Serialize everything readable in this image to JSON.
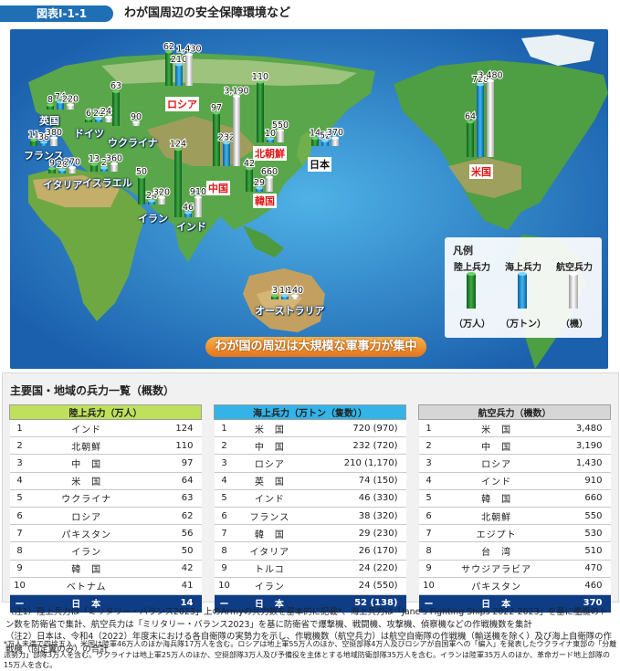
{
  "header": {
    "figure_no": "図表Ⅰ-1-1",
    "title": "わが国周辺の安全保障環境など"
  },
  "map": {
    "banner": "わが国の周辺は大規模な軍事力が集中",
    "legend": {
      "title": "凡例",
      "categories": [
        "陸上兵力",
        "海上兵力",
        "航空兵力"
      ],
      "units": [
        "（万人）",
        "（万トン）",
        "（機）"
      ]
    },
    "countries": [
      {
        "name": "英国",
        "ground": "8",
        "naval": "74",
        "air": "220"
      },
      {
        "name": "ドイツ",
        "ground": "6",
        "naval": "21",
        "air": "240"
      },
      {
        "name": "ウクライナ",
        "ground": "63",
        "naval": "",
        "air": "90"
      },
      {
        "name": "フランス",
        "ground": "11",
        "naval": "38",
        "air": "380"
      },
      {
        "name": "イタリア",
        "ground": "9",
        "naval": "26",
        "air": "270"
      },
      {
        "name": "イスラエル",
        "ground": "13",
        "naval": "2",
        "air": "360"
      },
      {
        "name": "イラン",
        "ground": "50",
        "naval": "24",
        "air": "320"
      },
      {
        "name": "インド",
        "ground": "124",
        "naval": "46",
        "air": "910"
      },
      {
        "name": "ロシア",
        "ground": "62",
        "naval": "210",
        "air": "1,430"
      },
      {
        "name": "中国",
        "ground": "97",
        "naval": "232",
        "air": "3,190"
      },
      {
        "name": "北朝鮮",
        "ground": "110",
        "naval": "10",
        "air": "550"
      },
      {
        "name": "韓国",
        "ground": "42",
        "naval": "29",
        "air": "660"
      },
      {
        "name": "日本",
        "ground": "14",
        "naval": "52",
        "air": "370"
      },
      {
        "name": "米国",
        "ground": "64",
        "naval": "720",
        "air": "3,480"
      },
      {
        "name": "オーストラリア",
        "ground": "3",
        "naval": "18",
        "air": "140"
      }
    ]
  },
  "section": {
    "title": "主要国・地域の兵力一覧（概数）"
  },
  "tables": [
    {
      "header": "陸上兵力（万人）",
      "color": "#bfe05a",
      "rows": [
        [
          "1",
          "インド",
          "124"
        ],
        [
          "2",
          "北朝鮮",
          "110"
        ],
        [
          "3",
          "中　国",
          "97"
        ],
        [
          "4",
          "米　国",
          "64"
        ],
        [
          "5",
          "ウクライナ",
          "63"
        ],
        [
          "6",
          "ロシア",
          "62"
        ],
        [
          "7",
          "パキスタン",
          "56"
        ],
        [
          "8",
          "イラン",
          "50"
        ],
        [
          "9",
          "韓　国",
          "42"
        ],
        [
          "10",
          "ベトナム",
          "41"
        ]
      ],
      "japan": [
        "ー",
        "日　本",
        "14"
      ]
    },
    {
      "header": "海上兵力（万トン（隻数））",
      "color": "#33b3e8",
      "rows": [
        [
          "1",
          "米　国",
          "720 (970)"
        ],
        [
          "2",
          "中　国",
          "232 (720)"
        ],
        [
          "3",
          "ロシア",
          "210 (1,170)"
        ],
        [
          "4",
          "英　国",
          "74 (150)"
        ],
        [
          "5",
          "インド",
          "46 (330)"
        ],
        [
          "6",
          "フランス",
          "38 (320)"
        ],
        [
          "7",
          "韓　国",
          "29 (230)"
        ],
        [
          "8",
          "イタリア",
          "26 (170)"
        ],
        [
          "9",
          "トルコ",
          "24 (220)"
        ],
        [
          "10",
          "イラン",
          "24 (550)"
        ]
      ],
      "japan": [
        "ー",
        "日　本",
        "52 (138)"
      ]
    },
    {
      "header": "航空兵力（機数）",
      "color": "#d6d6d6",
      "rows": [
        [
          "1",
          "米　国",
          "3,480"
        ],
        [
          "2",
          "中　国",
          "3,190"
        ],
        [
          "3",
          "ロシア",
          "1,430"
        ],
        [
          "4",
          "インド",
          "910"
        ],
        [
          "5",
          "韓　国",
          "660"
        ],
        [
          "6",
          "北朝鮮",
          "550"
        ],
        [
          "7",
          "エジプト",
          "530"
        ],
        [
          "8",
          "台　湾",
          "510"
        ],
        [
          "9",
          "サウジアラビア",
          "470"
        ],
        [
          "10",
          "パキスタン",
          "460"
        ]
      ],
      "japan": [
        "ー",
        "日　本",
        "370"
      ]
    }
  ],
  "notes": {
    "n1": "（注1）陸上兵力は「ミリタリー・バランス2023」上のArmyの兵力数を基本的に記載*、海上兵力は「Jane's Fighting Ships 2022-2023」を基に艦艇のトン数を防衛省で集計、航空兵力は「ミリタリー・バランス2023」を基に防衛省で爆撃機、戦闘機、攻撃機、偵察機などの作戦機数を集計",
    "n2": "（注2）日本は、令和4（2022）年度末における各自衛隊の実勢力を示し、作戦機数（航空兵力）は航空自衛隊の作戦機（輸送機を除く）及び海上自衛隊の作戦機（固定翼のみ）の合計",
    "n3": "*万人未満で四捨五入。米国は陸軍46万人のほか海兵隊17万人を含む。ロシアは地上軍55万人のほか、空挺部隊4万人及びロシアが自国軍への「編入」を発表したウクライナ東部の「分離派勢力」部隊3万人を含む。ウクライナは地上軍25万人のほか、空挺部隊3万人及び予備役を主体とする地域防衛部隊35万人を含む。イランは陸軍35万人のほか、革命ガード地上部隊の15万人を含む。"
  }
}
